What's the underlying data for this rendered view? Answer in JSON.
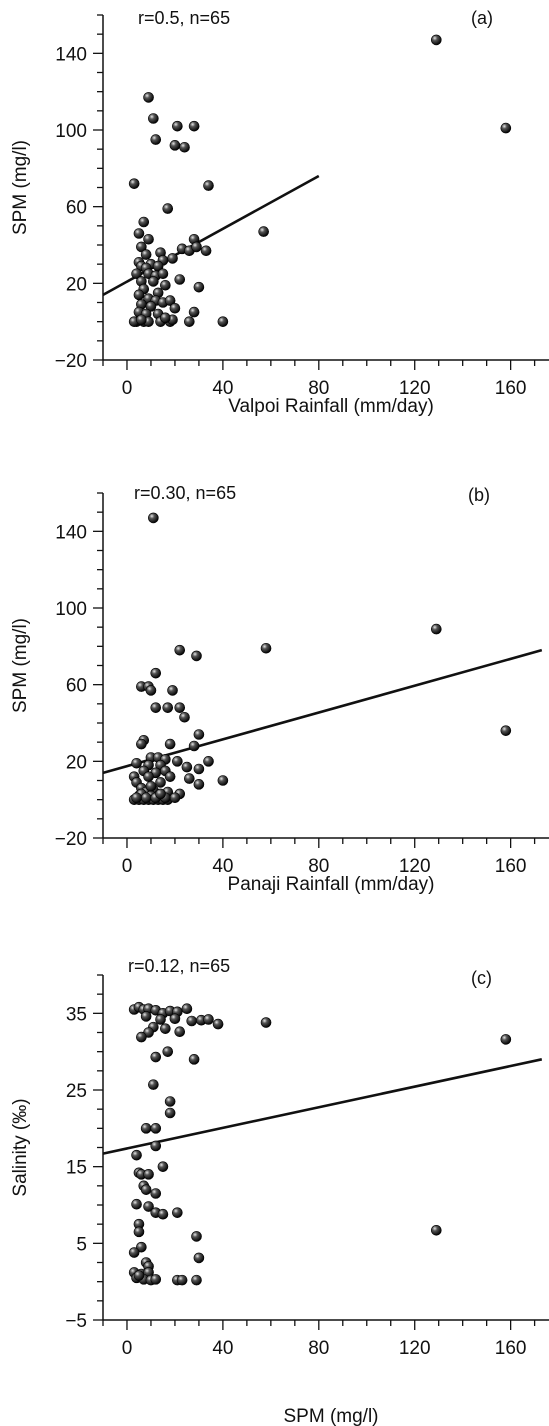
{
  "chart_data": [
    {
      "type": "scatter",
      "panel_label": "(a)",
      "annotation": "r=0.5, n=65",
      "xlabel": "Valpoi Rainfall (mm/day)",
      "ylabel": "SPM (mg/l)",
      "xlim": [
        -10,
        176
      ],
      "ylim": [
        -20,
        160
      ],
      "xticks": [
        0,
        40,
        80,
        120,
        160
      ],
      "xtick_labels": [
        "0",
        "40",
        "80",
        "120",
        "160"
      ],
      "yticks": [
        -20,
        20,
        60,
        100,
        140
      ],
      "ytick_labels": [
        "−20",
        "20",
        "60",
        "100",
        "140"
      ],
      "regression": {
        "x": [
          -10,
          80
        ],
        "y": [
          14,
          76
        ]
      },
      "points": [
        {
          "x": 129,
          "y": 147
        },
        {
          "x": 158,
          "y": 101
        },
        {
          "x": 57,
          "y": 47
        },
        {
          "x": 9,
          "y": 117
        },
        {
          "x": 11,
          "y": 106
        },
        {
          "x": 21,
          "y": 102
        },
        {
          "x": 28,
          "y": 102
        },
        {
          "x": 12,
          "y": 95
        },
        {
          "x": 20,
          "y": 92
        },
        {
          "x": 24,
          "y": 91
        },
        {
          "x": 3,
          "y": 72
        },
        {
          "x": 34,
          "y": 71
        },
        {
          "x": 17,
          "y": 59
        },
        {
          "x": 7,
          "y": 52
        },
        {
          "x": 5,
          "y": 46
        },
        {
          "x": 28,
          "y": 43
        },
        {
          "x": 9,
          "y": 43
        },
        {
          "x": 6,
          "y": 39
        },
        {
          "x": 8,
          "y": 35
        },
        {
          "x": 14,
          "y": 36
        },
        {
          "x": 23,
          "y": 38
        },
        {
          "x": 26,
          "y": 37
        },
        {
          "x": 29,
          "y": 39
        },
        {
          "x": 33,
          "y": 37
        },
        {
          "x": 19,
          "y": 33
        },
        {
          "x": 15,
          "y": 32
        },
        {
          "x": 5,
          "y": 31
        },
        {
          "x": 10,
          "y": 30
        },
        {
          "x": 6,
          "y": 29
        },
        {
          "x": 8,
          "y": 28
        },
        {
          "x": 13,
          "y": 29
        },
        {
          "x": 4,
          "y": 25
        },
        {
          "x": 9,
          "y": 25
        },
        {
          "x": 12,
          "y": 24
        },
        {
          "x": 15,
          "y": 25
        },
        {
          "x": 22,
          "y": 22
        },
        {
          "x": 6,
          "y": 21
        },
        {
          "x": 11,
          "y": 21
        },
        {
          "x": 16,
          "y": 19
        },
        {
          "x": 30,
          "y": 18
        },
        {
          "x": 7,
          "y": 17
        },
        {
          "x": 13,
          "y": 15
        },
        {
          "x": 5,
          "y": 14
        },
        {
          "x": 9,
          "y": 12
        },
        {
          "x": 12,
          "y": 11
        },
        {
          "x": 15,
          "y": 10
        },
        {
          "x": 18,
          "y": 11
        },
        {
          "x": 6,
          "y": 9
        },
        {
          "x": 10,
          "y": 8
        },
        {
          "x": 20,
          "y": 7
        },
        {
          "x": 5,
          "y": 5
        },
        {
          "x": 8,
          "y": 4
        },
        {
          "x": 13,
          "y": 4
        },
        {
          "x": 28,
          "y": 5
        },
        {
          "x": 4,
          "y": 0
        },
        {
          "x": 7,
          "y": 0
        },
        {
          "x": 9,
          "y": 0
        },
        {
          "x": 14,
          "y": 0
        },
        {
          "x": 18,
          "y": 0
        },
        {
          "x": 26,
          "y": 0
        },
        {
          "x": 40,
          "y": 0
        },
        {
          "x": 3,
          "y": 0
        },
        {
          "x": 6,
          "y": 1
        },
        {
          "x": 19,
          "y": 1
        },
        {
          "x": 16,
          "y": 2
        }
      ]
    },
    {
      "type": "scatter",
      "panel_label": "(b)",
      "annotation": "r=0.30, n=65",
      "xlabel": "Panaji Rainfall (mm/day)",
      "ylabel": "SPM (mg/l)",
      "xlim": [
        -10,
        176
      ],
      "ylim": [
        -20,
        160
      ],
      "xticks": [
        0,
        40,
        80,
        120,
        160
      ],
      "xtick_labels": [
        "0",
        "40",
        "80",
        "120",
        "160"
      ],
      "yticks": [
        -20,
        20,
        60,
        100,
        140
      ],
      "ytick_labels": [
        "−20",
        "20",
        "60",
        "100",
        "140"
      ],
      "regression": {
        "x": [
          -10,
          173
        ],
        "y": [
          14,
          78
        ]
      },
      "points": [
        {
          "x": 11,
          "y": 147
        },
        {
          "x": 129,
          "y": 89
        },
        {
          "x": 58,
          "y": 79
        },
        {
          "x": 22,
          "y": 78
        },
        {
          "x": 29,
          "y": 75
        },
        {
          "x": 12,
          "y": 66
        },
        {
          "x": 6,
          "y": 59
        },
        {
          "x": 9,
          "y": 59
        },
        {
          "x": 19,
          "y": 57
        },
        {
          "x": 10,
          "y": 57
        },
        {
          "x": 12,
          "y": 48
        },
        {
          "x": 17,
          "y": 48
        },
        {
          "x": 22,
          "y": 48
        },
        {
          "x": 24,
          "y": 43
        },
        {
          "x": 158,
          "y": 36
        },
        {
          "x": 30,
          "y": 34
        },
        {
          "x": 7,
          "y": 31
        },
        {
          "x": 6,
          "y": 29
        },
        {
          "x": 18,
          "y": 29
        },
        {
          "x": 28,
          "y": 28
        },
        {
          "x": 10,
          "y": 22
        },
        {
          "x": 13,
          "y": 22
        },
        {
          "x": 16,
          "y": 21
        },
        {
          "x": 34,
          "y": 20
        },
        {
          "x": 4,
          "y": 19
        },
        {
          "x": 9,
          "y": 18
        },
        {
          "x": 14,
          "y": 18
        },
        {
          "x": 25,
          "y": 17
        },
        {
          "x": 30,
          "y": 16
        },
        {
          "x": 7,
          "y": 15
        },
        {
          "x": 12,
          "y": 14
        },
        {
          "x": 16,
          "y": 15
        },
        {
          "x": 3,
          "y": 12
        },
        {
          "x": 9,
          "y": 12
        },
        {
          "x": 26,
          "y": 11
        },
        {
          "x": 40,
          "y": 10
        },
        {
          "x": 4,
          "y": 9
        },
        {
          "x": 14,
          "y": 9
        },
        {
          "x": 30,
          "y": 8
        },
        {
          "x": 6,
          "y": 6
        },
        {
          "x": 11,
          "y": 5
        },
        {
          "x": 8,
          "y": 4
        },
        {
          "x": 17,
          "y": 4
        },
        {
          "x": 22,
          "y": 3
        },
        {
          "x": 5,
          "y": 2
        },
        {
          "x": 10,
          "y": 2
        },
        {
          "x": 13,
          "y": 2
        },
        {
          "x": 3,
          "y": 0
        },
        {
          "x": 5,
          "y": 0
        },
        {
          "x": 7,
          "y": 0
        },
        {
          "x": 9,
          "y": 0
        },
        {
          "x": 11,
          "y": 0
        },
        {
          "x": 13,
          "y": 0
        },
        {
          "x": 15,
          "y": 0
        },
        {
          "x": 17,
          "y": 0
        },
        {
          "x": 20,
          "y": 1
        },
        {
          "x": 6,
          "y": 3
        },
        {
          "x": 8,
          "y": 1
        },
        {
          "x": 12,
          "y": 1
        },
        {
          "x": 16,
          "y": 1
        },
        {
          "x": 4,
          "y": 1
        },
        {
          "x": 14,
          "y": 3
        },
        {
          "x": 10,
          "y": 7
        },
        {
          "x": 18,
          "y": 12
        },
        {
          "x": 21,
          "y": 20
        }
      ]
    },
    {
      "type": "scatter",
      "panel_label": "(c)",
      "annotation": "r=0.12, n=65",
      "xlabel": "SPM (mg/l)",
      "ylabel": "Salinity (‰)",
      "xlim": [
        -10,
        176
      ],
      "ylim": [
        -5,
        40
      ],
      "xticks": [
        0,
        40,
        80,
        120,
        160
      ],
      "xtick_labels": [
        "0",
        "40",
        "80",
        "120",
        "160"
      ],
      "yticks": [
        -5,
        5,
        15,
        25,
        35
      ],
      "ytick_labels": [
        "−5",
        "5",
        "15",
        "25",
        "35"
      ],
      "regression": {
        "x": [
          -10,
          173
        ],
        "y": [
          16.7,
          29
        ]
      },
      "points": [
        {
          "x": 3,
          "y": 35.5
        },
        {
          "x": 5,
          "y": 35.8
        },
        {
          "x": 7,
          "y": 35.5
        },
        {
          "x": 9,
          "y": 35.6
        },
        {
          "x": 12,
          "y": 35.4
        },
        {
          "x": 15,
          "y": 35.0
        },
        {
          "x": 18,
          "y": 35.3
        },
        {
          "x": 21,
          "y": 35.2
        },
        {
          "x": 25,
          "y": 35.6
        },
        {
          "x": 8,
          "y": 34.6
        },
        {
          "x": 14,
          "y": 34.2
        },
        {
          "x": 20,
          "y": 34.3
        },
        {
          "x": 27,
          "y": 34.0
        },
        {
          "x": 31,
          "y": 34.1
        },
        {
          "x": 34,
          "y": 34.2
        },
        {
          "x": 38,
          "y": 33.6
        },
        {
          "x": 58,
          "y": 33.8
        },
        {
          "x": 16,
          "y": 33.0
        },
        {
          "x": 11,
          "y": 33.2
        },
        {
          "x": 22,
          "y": 32.6
        },
        {
          "x": 9,
          "y": 32.5
        },
        {
          "x": 6,
          "y": 31.9
        },
        {
          "x": 158,
          "y": 31.6
        },
        {
          "x": 17,
          "y": 30.0
        },
        {
          "x": 12,
          "y": 29.3
        },
        {
          "x": 28,
          "y": 29.0
        },
        {
          "x": 11,
          "y": 25.7
        },
        {
          "x": 18,
          "y": 23.5
        },
        {
          "x": 18,
          "y": 22.0
        },
        {
          "x": 8,
          "y": 20.0
        },
        {
          "x": 12,
          "y": 20.0
        },
        {
          "x": 12,
          "y": 17.7
        },
        {
          "x": 4,
          "y": 16.5
        },
        {
          "x": 15,
          "y": 15.0
        },
        {
          "x": 5,
          "y": 14.2
        },
        {
          "x": 6,
          "y": 14.0
        },
        {
          "x": 9,
          "y": 14.0
        },
        {
          "x": 7,
          "y": 12.5
        },
        {
          "x": 8,
          "y": 12.0
        },
        {
          "x": 12,
          "y": 11.5
        },
        {
          "x": 4,
          "y": 10.1
        },
        {
          "x": 9,
          "y": 9.8
        },
        {
          "x": 12,
          "y": 9.0
        },
        {
          "x": 15,
          "y": 8.8
        },
        {
          "x": 21,
          "y": 9.0
        },
        {
          "x": 5,
          "y": 7.5
        },
        {
          "x": 5,
          "y": 6.5
        },
        {
          "x": 129,
          "y": 6.7
        },
        {
          "x": 29,
          "y": 5.9
        },
        {
          "x": 6,
          "y": 4.5
        },
        {
          "x": 3,
          "y": 3.8
        },
        {
          "x": 30,
          "y": 3.1
        },
        {
          "x": 8,
          "y": 2.5
        },
        {
          "x": 9,
          "y": 2.0
        },
        {
          "x": 3,
          "y": 1.2
        },
        {
          "x": 6,
          "y": 1.0
        },
        {
          "x": 9,
          "y": 1.2
        },
        {
          "x": 4,
          "y": 0.5
        },
        {
          "x": 7,
          "y": 0.3
        },
        {
          "x": 10,
          "y": 0.2
        },
        {
          "x": 12,
          "y": 0.3
        },
        {
          "x": 21,
          "y": 0.2
        },
        {
          "x": 23,
          "y": 0.2
        },
        {
          "x": 29,
          "y": 0.2
        },
        {
          "x": 5,
          "y": 0.8
        }
      ]
    }
  ]
}
